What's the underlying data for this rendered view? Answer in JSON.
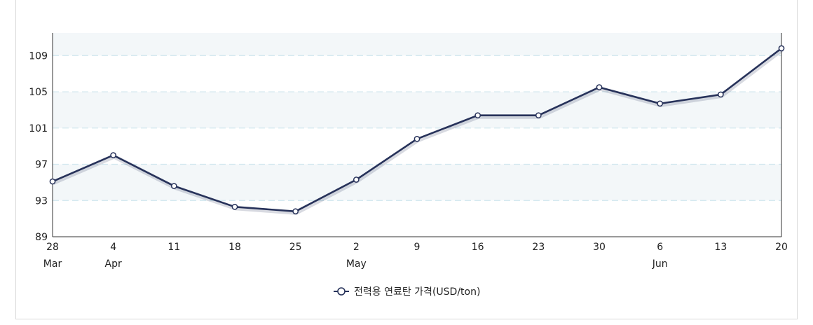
{
  "chart_data": {
    "type": "line",
    "x": [
      "28",
      "4",
      "11",
      "18",
      "25",
      "2",
      "9",
      "16",
      "23",
      "30",
      "6",
      "13",
      "20"
    ],
    "month_labels": [
      "Mar",
      "Apr",
      "",
      "",
      "",
      "May",
      "",
      "",
      "",
      "",
      "Jun",
      "",
      ""
    ],
    "series": [
      {
        "name": "전력용 연료탄 가격(USD/ton)",
        "values": [
          95.1,
          98.0,
          94.6,
          92.3,
          91.8,
          95.3,
          99.8,
          102.4,
          102.4,
          105.5,
          103.7,
          104.7,
          109.8
        ]
      }
    ],
    "ylim": [
      89,
      111.5
    ],
    "yticks": [
      89,
      93,
      97,
      101,
      105,
      109
    ],
    "grid": true,
    "legend": "bottom-center",
    "colors": {
      "line": "#27325a",
      "band": "#f3f7f9",
      "grid": "#cfe6ee",
      "axis": "#333333"
    }
  }
}
